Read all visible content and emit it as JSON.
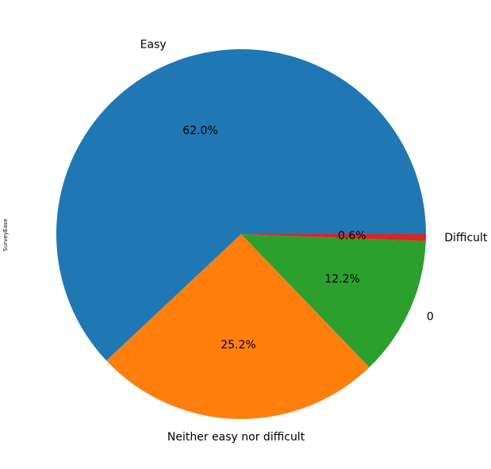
{
  "chart_data": {
    "type": "pie",
    "ylabel": "SurveyEase",
    "start_angle_deg": 0,
    "direction": "counterclockwise",
    "slices": [
      {
        "label": "Easy",
        "pct_label": "62.0%",
        "value": 62.0,
        "color": "#1f77b4"
      },
      {
        "label": "Neither easy nor difficult",
        "pct_label": "25.2%",
        "value": 25.2,
        "color": "#ff7f0e"
      },
      {
        "label": "0",
        "pct_label": "12.2%",
        "value": 12.2,
        "color": "#2ca02c"
      },
      {
        "label": "Difficult",
        "pct_label": "0.6%",
        "value": 0.6,
        "color": "#d62728"
      }
    ]
  }
}
